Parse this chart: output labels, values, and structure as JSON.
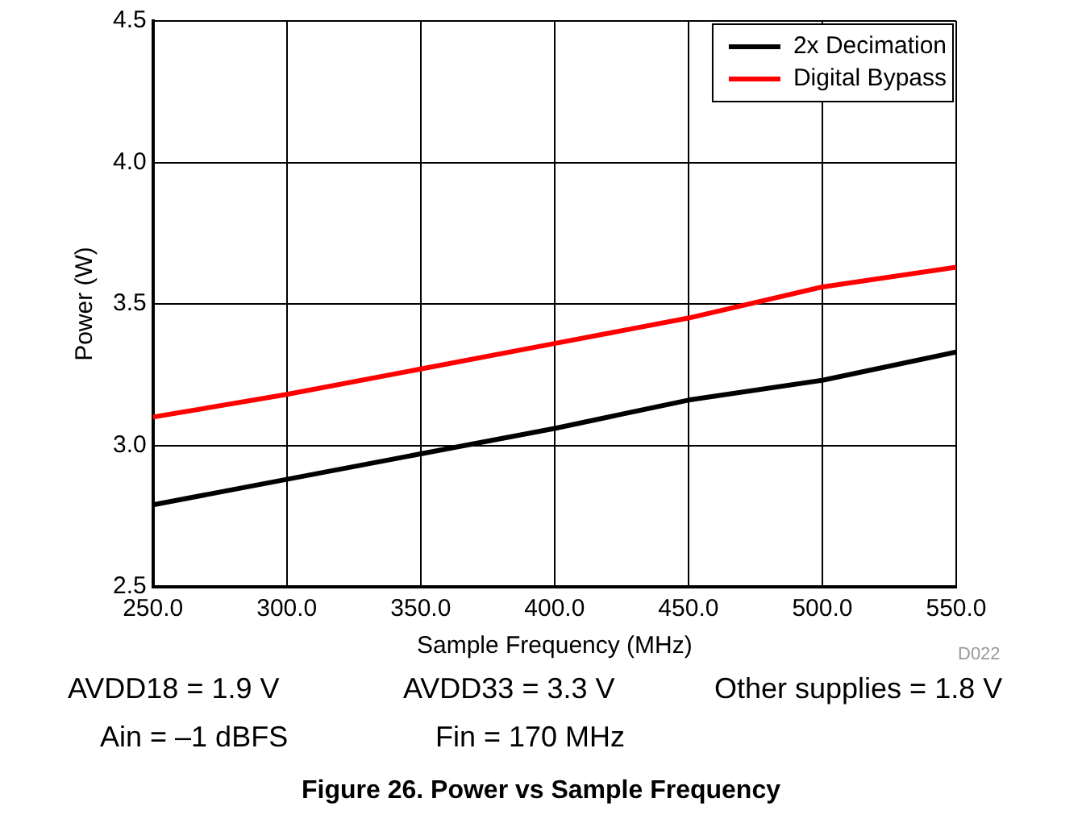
{
  "chart_data": {
    "type": "line",
    "title": "Figure 26. Power vs Sample Frequency",
    "xlabel": "Sample Frequency (MHz)",
    "ylabel": "Power (W)",
    "x": [
      250,
      300,
      350,
      400,
      450,
      500,
      550
    ],
    "series": [
      {
        "name": "2x Decimation",
        "color": "#000000",
        "values": [
          2.79,
          2.88,
          2.97,
          3.06,
          3.16,
          3.23,
          3.33
        ]
      },
      {
        "name": "Digital Bypass",
        "color": "#ff0000",
        "values": [
          3.1,
          3.18,
          3.27,
          3.36,
          3.45,
          3.56,
          3.63
        ]
      }
    ],
    "xlim": [
      250,
      550
    ],
    "xticks": [
      {
        "value": 250,
        "label": "250.0"
      },
      {
        "value": 300,
        "label": "300.0"
      },
      {
        "value": 350,
        "label": "350.0"
      },
      {
        "value": 400,
        "label": "400.0"
      },
      {
        "value": 450,
        "label": "450.0"
      },
      {
        "value": 500,
        "label": "500.0"
      },
      {
        "value": 550,
        "label": "550.0"
      }
    ],
    "ylim": [
      2.5,
      4.5
    ],
    "yticks": [
      {
        "value": 2.5,
        "label": "2.5"
      },
      {
        "value": 3,
        "label": "3.0"
      },
      {
        "value": 3.5,
        "label": "3.5"
      },
      {
        "value": 4,
        "label": "4.0"
      },
      {
        "value": 4.5,
        "label": "4.5"
      }
    ],
    "grid": true,
    "legend": "top right",
    "marker": "none",
    "line_style": "solid",
    "annotations": [
      "D022",
      "AVDD18 = 1.9 V",
      "AVDD33 = 3.3 V",
      "Other supplies = 1.8 V",
      "Ain = –1 dBFS",
      "Fin = 170 MHz"
    ]
  }
}
